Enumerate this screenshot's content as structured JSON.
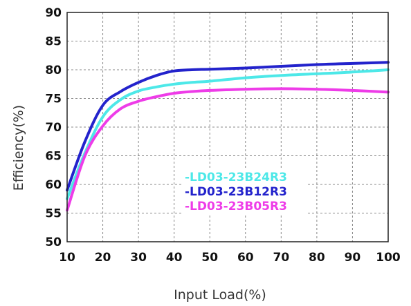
{
  "chart_data": {
    "type": "line",
    "title": "",
    "xlabel": "Input Load(%)",
    "ylabel": "Efficiency(%)",
    "xlim": [
      10,
      100
    ],
    "ylim": [
      50,
      90
    ],
    "x_ticks": [
      "10",
      "20",
      "30",
      "40",
      "50",
      "60",
      "70",
      "80",
      "90",
      "100"
    ],
    "y_ticks": [
      "50",
      "55",
      "60",
      "65",
      "70",
      "75",
      "80",
      "85",
      "90"
    ],
    "grid": true,
    "legend_position": "center-right",
    "series": [
      {
        "name": "-LD03-23B24R3",
        "color": "#4de8e8",
        "x": [
          10,
          15,
          20,
          25,
          30,
          35,
          40,
          45,
          50,
          60,
          70,
          80,
          90,
          100
        ],
        "y": [
          57.5,
          65.5,
          71.8,
          74.8,
          76.3,
          77.0,
          77.5,
          77.8,
          78.0,
          78.6,
          79.0,
          79.3,
          79.6,
          80.0
        ]
      },
      {
        "name": "-LD03-23B12R3",
        "color": "#2323cc",
        "x": [
          10,
          15,
          20,
          25,
          30,
          35,
          40,
          45,
          50,
          60,
          70,
          80,
          90,
          100
        ],
        "y": [
          59.0,
          67.5,
          73.8,
          76.2,
          77.8,
          79.0,
          79.8,
          80.0,
          80.1,
          80.3,
          80.6,
          80.9,
          81.1,
          81.3
        ]
      },
      {
        "name": "-LD03-23B05R3",
        "color": "#ee3ce8",
        "x": [
          10,
          15,
          20,
          25,
          30,
          35,
          40,
          45,
          50,
          60,
          70,
          80,
          90,
          100
        ],
        "y": [
          55.5,
          65.0,
          70.2,
          73.2,
          74.5,
          75.3,
          75.9,
          76.2,
          76.4,
          76.6,
          76.7,
          76.6,
          76.4,
          76.1
        ]
      }
    ]
  }
}
